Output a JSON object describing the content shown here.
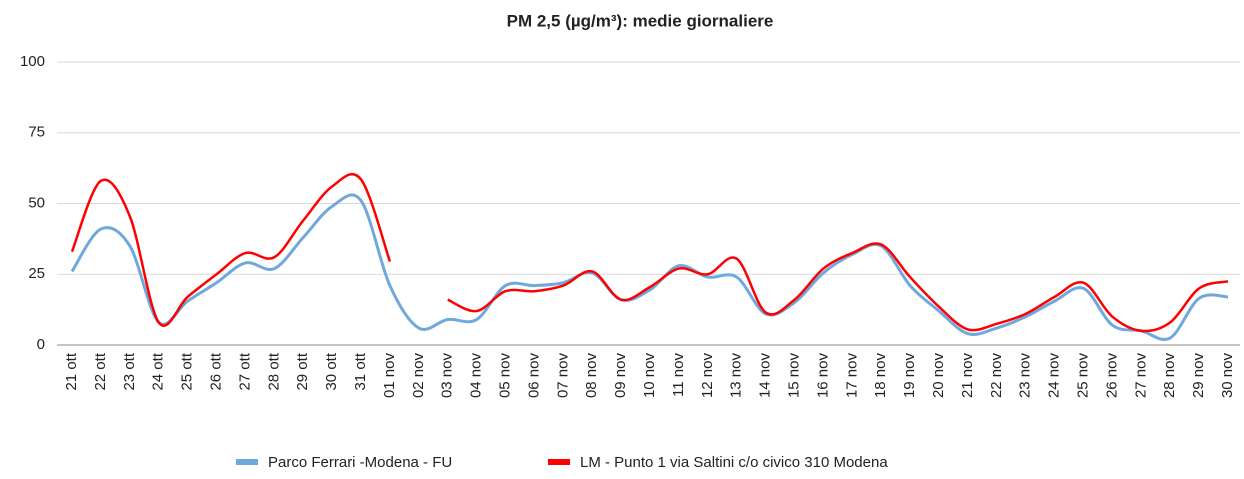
{
  "chart_data": {
    "type": "line",
    "title": "PM 2,5 (µg/m³): medie giornaliere",
    "categories": [
      "21 ott",
      "22 ott",
      "23 ott",
      "24 ott",
      "25 ott",
      "26 ott",
      "27 ott",
      "28 ott",
      "29 ott",
      "30 ott",
      "31 ott",
      "01 nov",
      "02 nov",
      "03 nov",
      "04 nov",
      "05 nov",
      "06 nov",
      "07 nov",
      "08 nov",
      "09 nov",
      "10 nov",
      "11 nov",
      "12 nov",
      "13 nov",
      "14 nov",
      "15 nov",
      "16 nov",
      "17 nov",
      "18 nov",
      "19 nov",
      "20 nov",
      "21 nov",
      "22 nov",
      "23 nov",
      "24 nov",
      "25 nov",
      "26 nov",
      "27 nov",
      "28 nov",
      "29 nov",
      "30 nov"
    ],
    "series": [
      {
        "name": "Parco Ferrari -Modena - FU",
        "color": "#6fa8dc",
        "values": [
          26,
          41,
          35,
          8,
          15.5,
          22,
          29,
          27,
          38,
          49,
          51,
          21,
          6,
          9,
          9,
          21,
          21,
          22,
          25.5,
          16,
          19.5,
          28,
          24,
          24,
          11,
          15,
          25.5,
          32,
          35,
          21,
          12,
          4,
          6,
          10,
          15.5,
          20,
          7,
          5,
          2.5,
          16.5,
          17
        ]
      },
      {
        "name": "LM - Punto 1 via Saltini c/o civico 310 Modena",
        "color": "#ff0000",
        "values": [
          33,
          58,
          45.5,
          8,
          17,
          25,
          32.5,
          31,
          44,
          56,
          58.5,
          29.5,
          null,
          16,
          12,
          19,
          19,
          21,
          26,
          16,
          20.5,
          27,
          25,
          30.5,
          11.5,
          16,
          27,
          32.5,
          35.5,
          24,
          13.5,
          5.5,
          7.5,
          11,
          17,
          22,
          10,
          5,
          8,
          20,
          22.5
        ]
      }
    ],
    "ylim": [
      0,
      100
    ],
    "yticks": [
      0,
      25,
      50,
      75,
      100
    ],
    "grid": true
  }
}
